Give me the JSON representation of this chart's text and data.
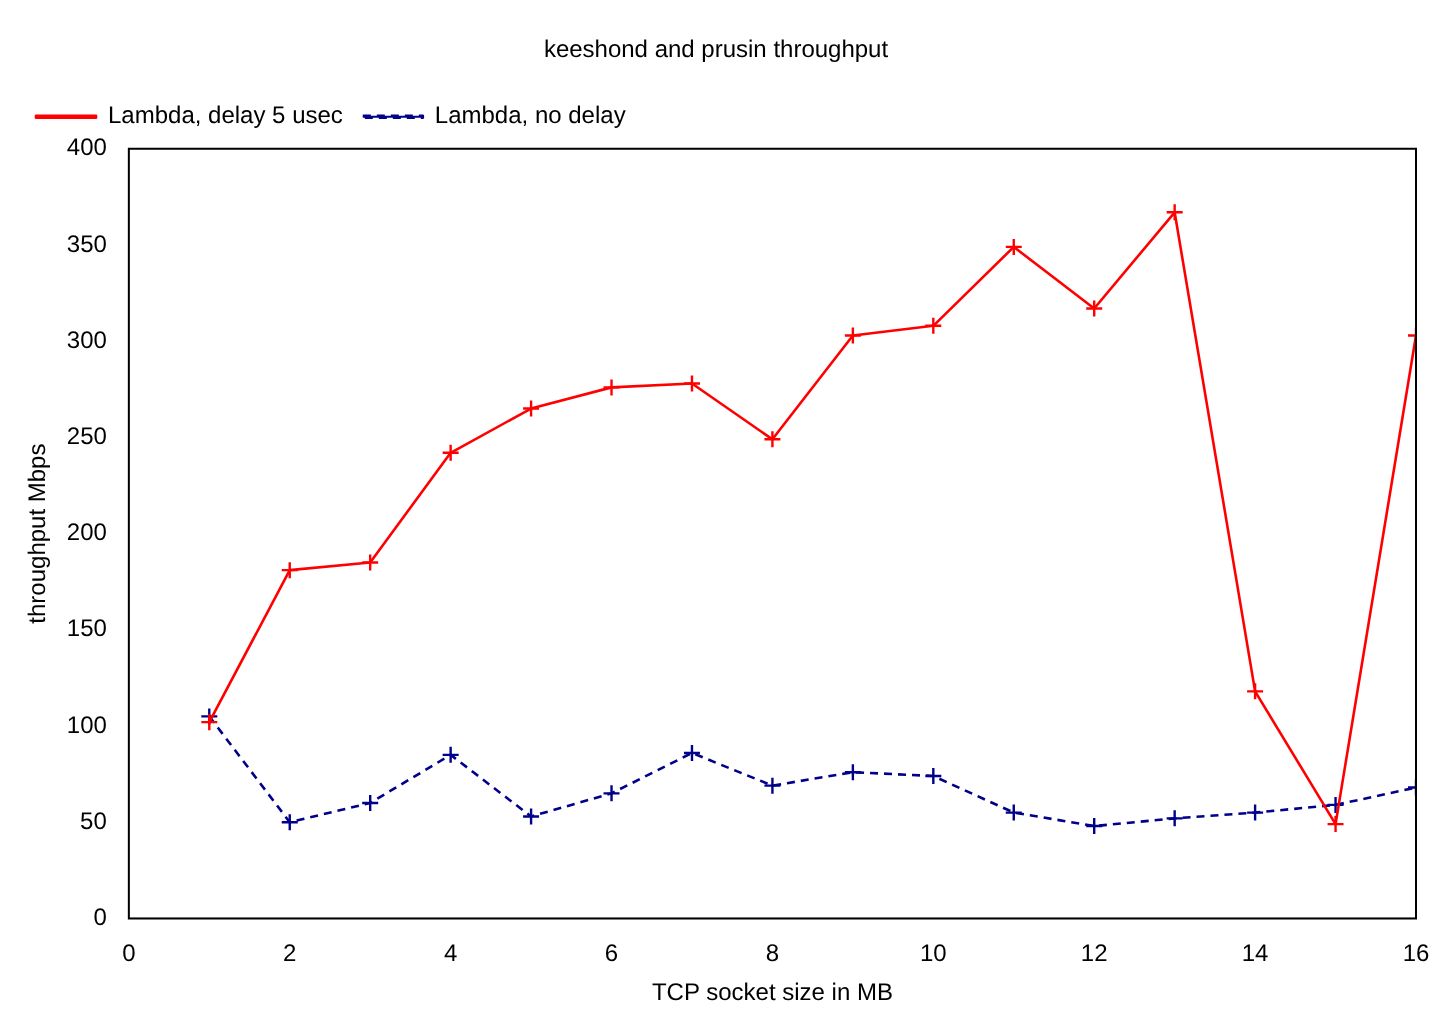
{
  "chart_data": {
    "type": "line",
    "title": "keeshond and prusin throughput",
    "xlabel": "TCP socket size in MB",
    "ylabel": "throughput Mbps",
    "x": [
      1,
      2,
      3,
      4,
      5,
      6,
      7,
      8,
      9,
      10,
      11,
      12,
      13,
      14,
      15,
      16
    ],
    "xlim": [
      0,
      16
    ],
    "xticks": [
      0,
      2,
      4,
      6,
      8,
      10,
      12,
      14,
      16
    ],
    "ylim": [
      0,
      400
    ],
    "yticks": [
      0,
      50,
      100,
      150,
      200,
      250,
      300,
      350,
      400
    ],
    "grid": false,
    "legend": "top left",
    "marker": "cross",
    "series": [
      {
        "name": "Lambda, delay 5 usec",
        "color": "#ff0000",
        "line_style": "solid",
        "values": [
          102,
          181,
          185,
          242,
          265,
          276,
          278,
          249,
          303,
          308,
          349,
          317,
          367,
          118,
          49,
          303
        ]
      },
      {
        "name": "Lambda, no delay",
        "color": "#00008b",
        "line_style": "dashed",
        "values": [
          105,
          50,
          60,
          85,
          53,
          65,
          86,
          69,
          76,
          74,
          55,
          48,
          52,
          55,
          59,
          68
        ]
      }
    ]
  }
}
